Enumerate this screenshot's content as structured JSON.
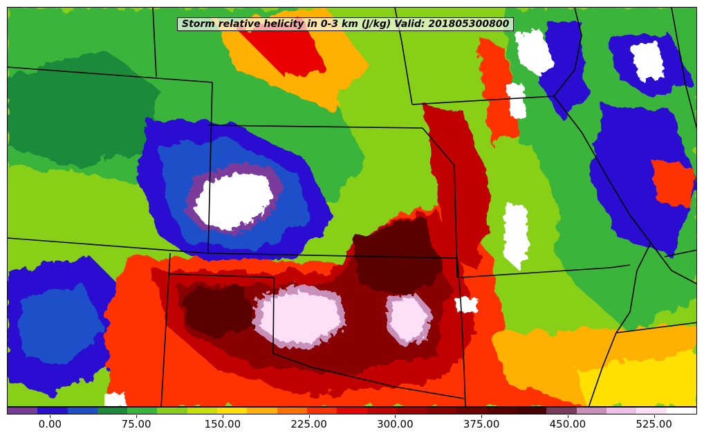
{
  "title": "Storm relative helicity in 0-3 km (J/kg) Valid: 201805300800",
  "colorbar": {
    "colors": [
      "#7a3a9a",
      "#2a10d0",
      "#1d4fc8",
      "#1a8a3a",
      "#3ab43a",
      "#88d018",
      "#c8e000",
      "#ffe000",
      "#ffb000",
      "#ff7000",
      "#ff3000",
      "#e80000",
      "#c00000",
      "#a00000",
      "#880000",
      "#700000",
      "#5a0000",
      "#4a0000",
      "#7a3a5a",
      "#c890b8",
      "#f0c0e8",
      "#fde0f8",
      "#ffffff"
    ],
    "tick_labels": [
      "0.00",
      "75.00",
      "150.00",
      "225.00",
      "300.00",
      "375.00",
      "450.00",
      "525.00"
    ],
    "tick_values": [
      0,
      75,
      150,
      225,
      300,
      375,
      450,
      525
    ],
    "min": -37.5,
    "max": 562.5
  }
}
